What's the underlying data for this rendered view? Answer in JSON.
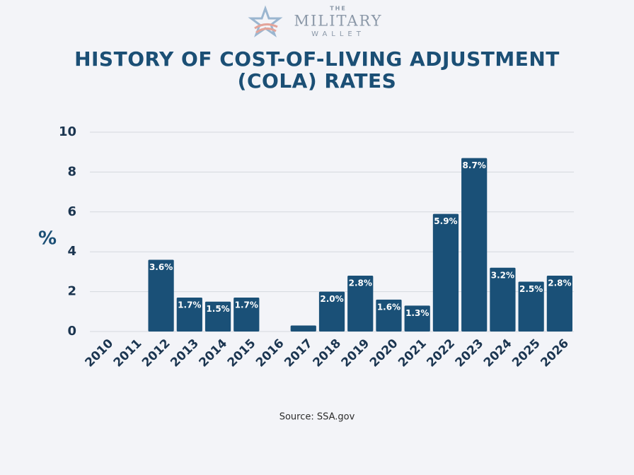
{
  "logo": {
    "top": "THE",
    "middle": "MILITARY",
    "bottom": "WALLET"
  },
  "chart_data": {
    "type": "bar",
    "title": "HISTORY OF COST-OF-LIVING ADJUSTMENT (COLA) RATES",
    "y_label": "%",
    "source": "Source: SSA.gov",
    "categories": [
      "2010",
      "2011",
      "2012",
      "2013",
      "2014",
      "2015",
      "2016",
      "2017",
      "2018",
      "2019",
      "2020",
      "2021",
      "2022",
      "2023",
      "2024",
      "2025",
      "2026"
    ],
    "values": [
      0,
      0,
      3.6,
      1.7,
      1.5,
      1.7,
      0,
      0.3,
      2.0,
      2.8,
      1.6,
      1.3,
      5.9,
      8.7,
      3.2,
      2.5,
      2.8
    ],
    "value_labels": [
      null,
      null,
      "3.6%",
      "1.7%",
      "1.5%",
      "1.7%",
      null,
      null,
      "2.0%",
      "2.8%",
      "1.6%",
      "1.3%",
      "5.9%",
      "8.7%",
      "3.2%",
      "2.5%",
      "2.8%"
    ],
    "color": "#1a5077",
    "ylim": [
      0,
      10
    ],
    "yticks": [
      0,
      2,
      4,
      6,
      8,
      10
    ],
    "grid": true
  }
}
